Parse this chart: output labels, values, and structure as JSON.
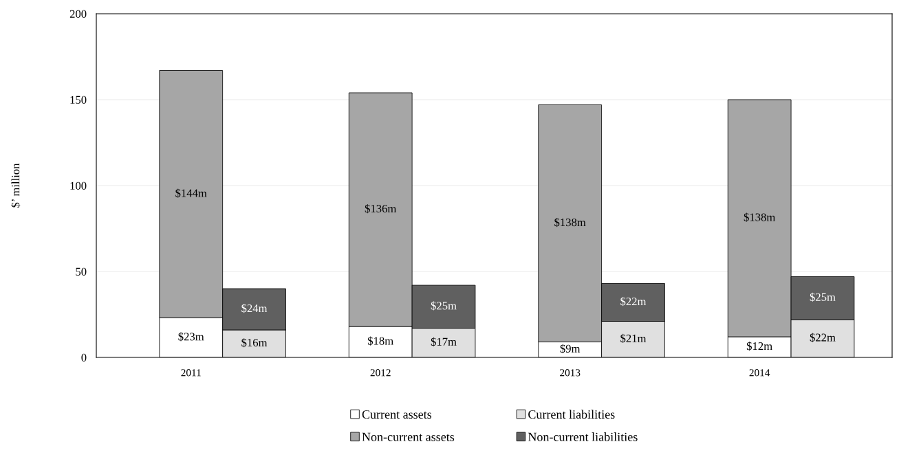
{
  "chart_data": {
    "type": "bar",
    "stacked": true,
    "ylabel": "$’ million",
    "categories": [
      null,
      "2011",
      null,
      null,
      "2012",
      null,
      null,
      "2013",
      null,
      null,
      "2014",
      null,
      null
    ],
    "series": [
      {
        "name": "Current assets",
        "color": "#ffffff",
        "values": [
          null,
          23,
          null,
          null,
          18,
          null,
          null,
          9,
          null,
          null,
          12,
          null,
          null
        ],
        "value_labels": [
          null,
          "$23m",
          null,
          null,
          "$18m",
          null,
          null,
          "$9m",
          null,
          null,
          "$12m",
          null,
          null
        ]
      },
      {
        "name": "Non-current assets",
        "color": "#a6a6a6",
        "values": [
          null,
          144,
          null,
          null,
          136,
          null,
          null,
          138,
          null,
          null,
          138,
          null,
          null
        ],
        "value_labels": [
          null,
          "$144m",
          null,
          null,
          "$136m",
          null,
          null,
          "$138m",
          null,
          null,
          "$138m",
          null,
          null
        ]
      },
      {
        "name": "Current liabilities",
        "color": "#e0e0e0",
        "values": [
          null,
          null,
          16,
          null,
          null,
          17,
          null,
          null,
          21,
          null,
          null,
          22,
          null
        ],
        "value_labels": [
          null,
          null,
          "$16m",
          null,
          null,
          "$17m",
          null,
          null,
          "$21m",
          null,
          null,
          "$22m",
          null
        ]
      },
      {
        "name": "Non-current liabilities",
        "color": "#606060",
        "values": [
          null,
          null,
          24,
          null,
          null,
          25,
          null,
          null,
          22,
          null,
          null,
          25,
          null
        ],
        "value_labels": [
          null,
          null,
          "$24m",
          null,
          null,
          "$25m",
          null,
          null,
          "$22m",
          null,
          null,
          "$25m",
          null
        ]
      }
    ],
    "ylim": [
      0,
      200
    ],
    "yticks": [
      0,
      50,
      100,
      150,
      200
    ],
    "grid": "y",
    "legend": "bottom"
  }
}
